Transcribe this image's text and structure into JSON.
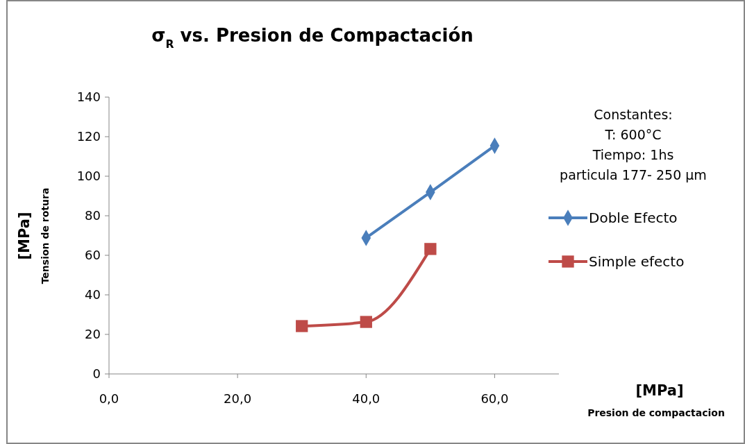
{
  "chart_data": {
    "type": "line",
    "title": "σ$_{R}$ vs. Presion de Compactación",
    "xlabel": "[MPa]\nPresion de compactacion",
    "ylabel": "[MPa]\nTension de rotura",
    "xlim": [
      0,
      70
    ],
    "xticks": [
      {
        "value": 0,
        "label": "0,0"
      },
      {
        "value": 20,
        "label": "20,0"
      },
      {
        "value": 40,
        "label": "40,0"
      },
      {
        "value": 60,
        "label": "60,0"
      }
    ],
    "ylim": [
      0,
      140
    ],
    "yticks": [
      0,
      20,
      40,
      60,
      80,
      100,
      120,
      140
    ],
    "grid": false,
    "legend": "right",
    "annotations": [
      "Constantes:\nT: 600°C\nTiempo: 1hs\nparticula 177- 250 µm"
    ],
    "series": [
      {
        "name": "Doble Efecto",
        "color": "#4a7ebb",
        "marker": "diamond",
        "x": [
          40,
          50,
          60
        ],
        "values": [
          68.8,
          91.9,
          115.4
        ]
      },
      {
        "name": "Simple efecto",
        "color": "#be4b48",
        "marker": "square",
        "x": [
          30,
          40,
          50
        ],
        "values": [
          24.2,
          26.3,
          63.2
        ]
      }
    ]
  }
}
